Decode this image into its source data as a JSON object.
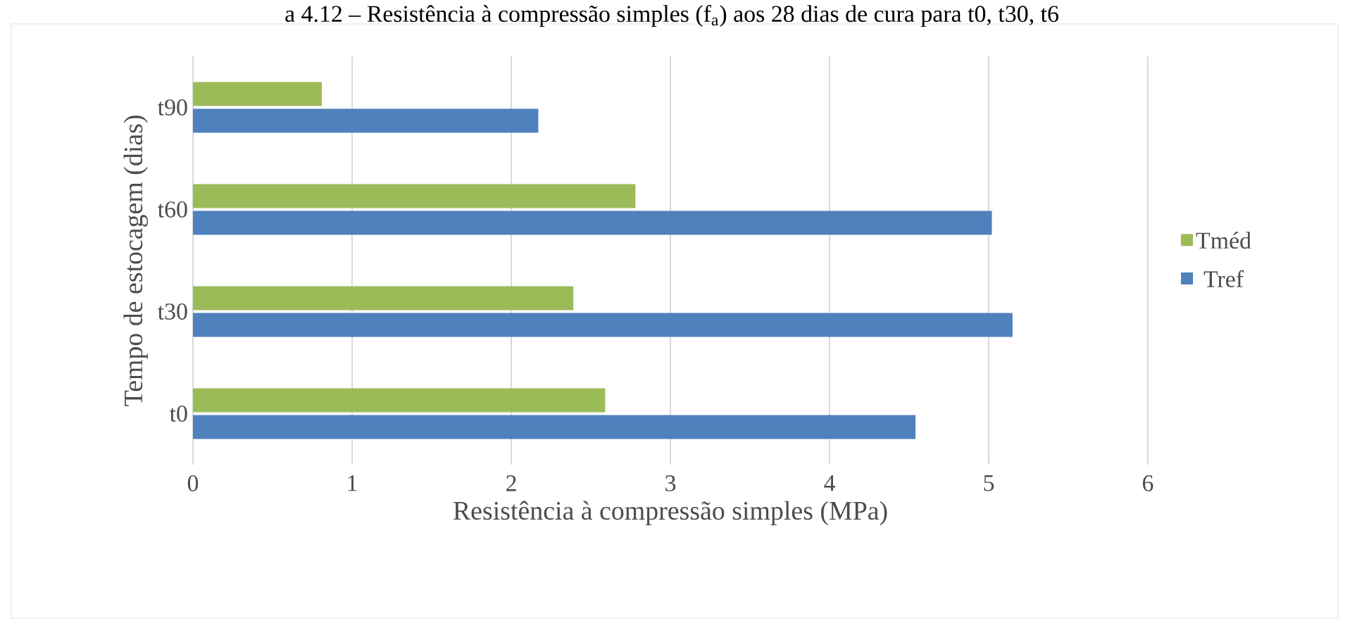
{
  "chart_data": {
    "type": "bar",
    "orientation": "horizontal",
    "title": "a 4.12 – Resistência à compressão simples (f$_{a}$) aos 28 dias de cura para t0, t30, t6",
    "xlabel": "Resistência à compressão simples (MPa)",
    "ylabel": "Tempo de estocagem (dias)",
    "categories": [
      "t90",
      "t60",
      "t30",
      "t0"
    ],
    "series": [
      {
        "name": "Tméd",
        "color": "#9bbb59",
        "values": [
          0.81,
          2.78,
          2.39,
          2.59
        ]
      },
      {
        "name": "Tref",
        "color": "#4f81bd",
        "values": [
          2.17,
          5.02,
          5.15,
          4.54
        ]
      }
    ],
    "xlim": [
      0,
      6
    ],
    "xticks": [
      0,
      1,
      2,
      3,
      4,
      5,
      6
    ],
    "grid": "x",
    "legend": "right"
  }
}
